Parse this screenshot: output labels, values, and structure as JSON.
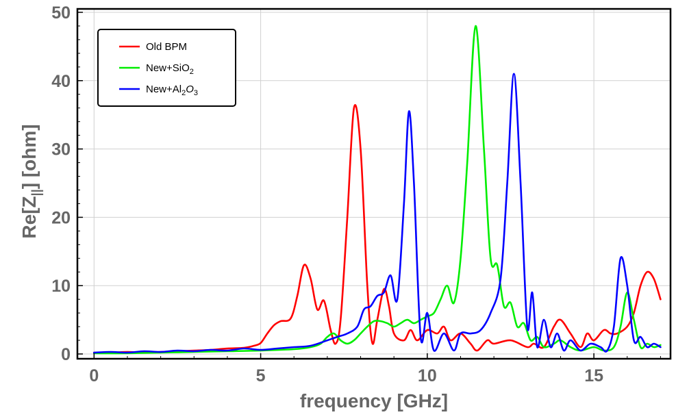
{
  "chart_data": {
    "type": "line",
    "title": "",
    "xlabel": "frequency [GHz]",
    "ylabel": "Re[Z",
    "ylabel_sub": "||",
    "ylabel_end": "] [ohm]",
    "xlim": [
      -0.5,
      17.3
    ],
    "ylim": [
      -0.7,
      50.5
    ],
    "xticks": [
      0,
      5,
      10,
      15
    ],
    "yticks": [
      0,
      10,
      20,
      30,
      40,
      50
    ],
    "xtick_labels": [
      "0",
      "5",
      "10",
      "15"
    ],
    "ytick_labels": [
      "0",
      "10",
      "20",
      "30",
      "40",
      "50"
    ],
    "grid": true,
    "legend_position": "top-left",
    "series": [
      {
        "name": "Old BPM",
        "legend_base": "Old BPM",
        "legend_sub1": "",
        "legend_mid": "",
        "legend_sub2": "",
        "color": "#ff0000",
        "points": [
          [
            0,
            0.2
          ],
          [
            0.5,
            0.2
          ],
          [
            1,
            0.3
          ],
          [
            1.5,
            0.2
          ],
          [
            2,
            0.3
          ],
          [
            2.5,
            0.4
          ],
          [
            3,
            0.5
          ],
          [
            3.5,
            0.6
          ],
          [
            4,
            0.8
          ],
          [
            4.5,
            0.9
          ],
          [
            4.8,
            1.2
          ],
          [
            5,
            1.6
          ],
          [
            5.2,
            3
          ],
          [
            5.4,
            4.2
          ],
          [
            5.6,
            4.8
          ],
          [
            5.9,
            5.2
          ],
          [
            6.1,
            8.5
          ],
          [
            6.3,
            13
          ],
          [
            6.5,
            11
          ],
          [
            6.7,
            6.5
          ],
          [
            6.9,
            7.8
          ],
          [
            7.1,
            3.5
          ],
          [
            7.25,
            1.5
          ],
          [
            7.4,
            5
          ],
          [
            7.6,
            20
          ],
          [
            7.8,
            36
          ],
          [
            8.0,
            30
          ],
          [
            8.2,
            10
          ],
          [
            8.35,
            1.6
          ],
          [
            8.5,
            5
          ],
          [
            8.7,
            9.5
          ],
          [
            8.85,
            7
          ],
          [
            9.0,
            3
          ],
          [
            9.3,
            2
          ],
          [
            9.5,
            3.5
          ],
          [
            9.7,
            2
          ],
          [
            10.0,
            3.5
          ],
          [
            10.3,
            3
          ],
          [
            10.5,
            4
          ],
          [
            10.7,
            2
          ],
          [
            11.0,
            3
          ],
          [
            11.3,
            1.5
          ],
          [
            11.5,
            0.5
          ],
          [
            11.8,
            2
          ],
          [
            12.0,
            1.5
          ],
          [
            12.5,
            2
          ],
          [
            13.0,
            1
          ],
          [
            13.2,
            1.5
          ],
          [
            13.5,
            1
          ],
          [
            13.8,
            4
          ],
          [
            14.0,
            5
          ],
          [
            14.3,
            3
          ],
          [
            14.6,
            1
          ],
          [
            14.8,
            3
          ],
          [
            15.0,
            2
          ],
          [
            15.3,
            3.5
          ],
          [
            15.5,
            3
          ],
          [
            15.7,
            3
          ],
          [
            16.0,
            4
          ],
          [
            16.2,
            6
          ],
          [
            16.4,
            10
          ],
          [
            16.6,
            12
          ],
          [
            16.8,
            11
          ],
          [
            17.0,
            8
          ]
        ]
      },
      {
        "name": "New+SiO2",
        "legend_base": "New+SiO",
        "legend_sub1": "2",
        "legend_mid": "",
        "legend_sub2": "",
        "color": "#00ee00",
        "points": [
          [
            0,
            0.1
          ],
          [
            1,
            0.1
          ],
          [
            2,
            0.2
          ],
          [
            3,
            0.3
          ],
          [
            4,
            0.4
          ],
          [
            5,
            0.5
          ],
          [
            6,
            0.7
          ],
          [
            6.5,
            1
          ],
          [
            6.8,
            1.5
          ],
          [
            7.0,
            2.5
          ],
          [
            7.2,
            3
          ],
          [
            7.4,
            2
          ],
          [
            7.6,
            1.5
          ],
          [
            7.8,
            2
          ],
          [
            8.0,
            3
          ],
          [
            8.2,
            4
          ],
          [
            8.4,
            4.8
          ],
          [
            8.6,
            4.8
          ],
          [
            8.8,
            4.5
          ],
          [
            9.0,
            4
          ],
          [
            9.2,
            4.5
          ],
          [
            9.4,
            5
          ],
          [
            9.6,
            4.5
          ],
          [
            9.8,
            5
          ],
          [
            10.0,
            5.5
          ],
          [
            10.2,
            6
          ],
          [
            10.4,
            8
          ],
          [
            10.6,
            10
          ],
          [
            10.8,
            7.5
          ],
          [
            11.0,
            14
          ],
          [
            11.2,
            28
          ],
          [
            11.45,
            48
          ],
          [
            11.7,
            30
          ],
          [
            11.9,
            14
          ],
          [
            12.1,
            13
          ],
          [
            12.3,
            7
          ],
          [
            12.5,
            7.5
          ],
          [
            12.7,
            4
          ],
          [
            12.9,
            4.5
          ],
          [
            13.1,
            2
          ],
          [
            13.3,
            2.5
          ],
          [
            13.5,
            1
          ],
          [
            13.8,
            1.5
          ],
          [
            14.0,
            2
          ],
          [
            14.3,
            1
          ],
          [
            14.6,
            0.5
          ],
          [
            15.0,
            1
          ],
          [
            15.3,
            0.5
          ],
          [
            15.6,
            1
          ],
          [
            15.8,
            4
          ],
          [
            16.0,
            9
          ],
          [
            16.2,
            5
          ],
          [
            16.4,
            1
          ],
          [
            16.6,
            1.5
          ],
          [
            16.8,
            1
          ],
          [
            17.0,
            1.3
          ]
        ]
      },
      {
        "name": "New+Al2O3",
        "legend_base": "New+Al",
        "legend_sub1": "2",
        "legend_mid": "O",
        "legend_sub2": "3",
        "color": "#0000ff",
        "points": [
          [
            0,
            0.2
          ],
          [
            0.5,
            0.3
          ],
          [
            1,
            0.2
          ],
          [
            1.5,
            0.4
          ],
          [
            2,
            0.3
          ],
          [
            2.5,
            0.5
          ],
          [
            3,
            0.4
          ],
          [
            3.5,
            0.6
          ],
          [
            4,
            0.5
          ],
          [
            4.5,
            0.8
          ],
          [
            5,
            0.6
          ],
          [
            5.5,
            0.8
          ],
          [
            6,
            1
          ],
          [
            6.5,
            1.2
          ],
          [
            7.0,
            2
          ],
          [
            7.3,
            2.5
          ],
          [
            7.6,
            3
          ],
          [
            7.9,
            4
          ],
          [
            8.1,
            6.5
          ],
          [
            8.3,
            7
          ],
          [
            8.5,
            8.5
          ],
          [
            8.7,
            9
          ],
          [
            8.9,
            11.5
          ],
          [
            9.1,
            8
          ],
          [
            9.3,
            22
          ],
          [
            9.45,
            35.5
          ],
          [
            9.6,
            25
          ],
          [
            9.8,
            2.5
          ],
          [
            10.0,
            6
          ],
          [
            10.2,
            0.5
          ],
          [
            10.5,
            3
          ],
          [
            10.8,
            0.5
          ],
          [
            11.0,
            3
          ],
          [
            11.3,
            3
          ],
          [
            11.6,
            3.5
          ],
          [
            11.9,
            6
          ],
          [
            12.2,
            11
          ],
          [
            12.4,
            25
          ],
          [
            12.6,
            41
          ],
          [
            12.8,
            25
          ],
          [
            13.0,
            4
          ],
          [
            13.15,
            9
          ],
          [
            13.3,
            1
          ],
          [
            13.5,
            5
          ],
          [
            13.7,
            1
          ],
          [
            13.9,
            3
          ],
          [
            14.1,
            0.5
          ],
          [
            14.3,
            2
          ],
          [
            14.6,
            0.5
          ],
          [
            14.9,
            1.5
          ],
          [
            15.2,
            1
          ],
          [
            15.4,
            0.5
          ],
          [
            15.6,
            4
          ],
          [
            15.8,
            14
          ],
          [
            16.0,
            10
          ],
          [
            16.2,
            2
          ],
          [
            16.4,
            2.5
          ],
          [
            16.6,
            1
          ],
          [
            16.8,
            1.5
          ],
          [
            17.0,
            1
          ]
        ]
      }
    ]
  }
}
